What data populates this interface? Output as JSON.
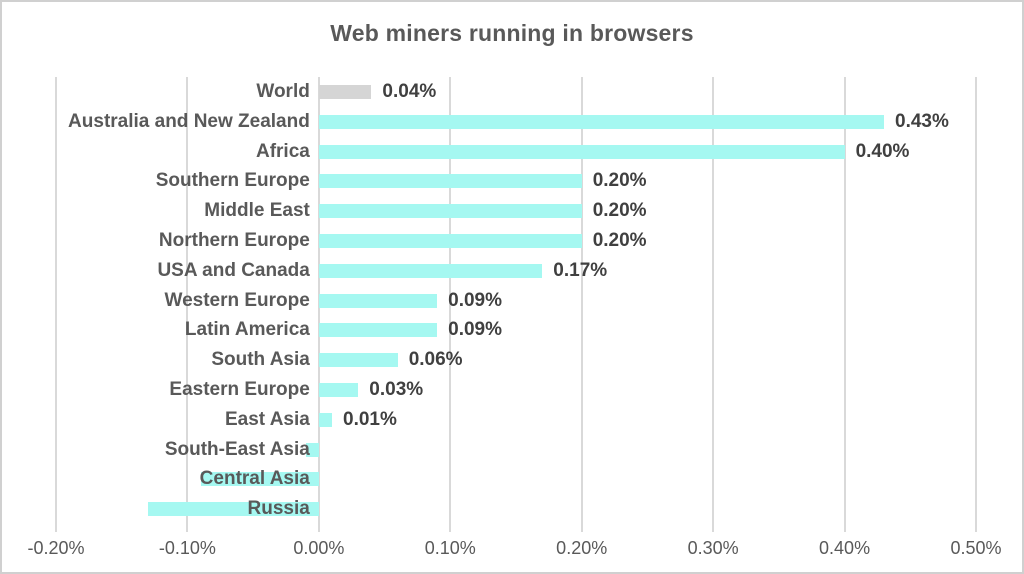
{
  "title": "Web miners running in browsers",
  "colors": {
    "bar_default": "#a5f8f1",
    "bar_world": "#d5d5d5",
    "text": "#595959",
    "value_text": "#404040",
    "gridline": "#d9d9d9",
    "border": "#d0d0d0",
    "background": "#ffffff"
  },
  "chart_data": {
    "type": "bar",
    "orientation": "horizontal",
    "title": "Web miners running in browsers",
    "categories": [
      "World",
      "Australia and New Zealand",
      "Africa",
      "Southern Europe",
      "Middle East",
      "Northern Europe",
      "USA and Canada",
      "Western Europe",
      "Latin America",
      "South Asia",
      "Eastern Europe",
      "East Asia",
      "South-East Asia",
      "Central Asia",
      "Russia"
    ],
    "values": [
      0.04,
      0.43,
      0.4,
      0.2,
      0.2,
      0.2,
      0.17,
      0.09,
      0.09,
      0.06,
      0.03,
      0.01,
      -0.01,
      -0.09,
      -0.13
    ],
    "value_labels": [
      "0.04%",
      "0.43%",
      "0.40%",
      "0.20%",
      "0.20%",
      "0.20%",
      "0.17%",
      "0.09%",
      "0.09%",
      "0.06%",
      "0.03%",
      "0.01%",
      "",
      "",
      ""
    ],
    "bar_colors": [
      "#d5d5d5",
      "#a5f8f1",
      "#a5f8f1",
      "#a5f8f1",
      "#a5f8f1",
      "#a5f8f1",
      "#a5f8f1",
      "#a5f8f1",
      "#a5f8f1",
      "#a5f8f1",
      "#a5f8f1",
      "#a5f8f1",
      "#a5f8f1",
      "#a5f8f1",
      "#a5f8f1"
    ],
    "xlabel": "",
    "ylabel": "",
    "xlim": [
      -0.2,
      0.5
    ],
    "x_tick_values": [
      -0.2,
      -0.1,
      0.0,
      0.1,
      0.2,
      0.3,
      0.4,
      0.5
    ],
    "x_tick_labels": [
      "-0.20%",
      "-0.10%",
      "0.00%",
      "0.10%",
      "0.20%",
      "0.30%",
      "0.40%",
      "0.50%"
    ],
    "grid": "vertical",
    "legend": "none"
  }
}
